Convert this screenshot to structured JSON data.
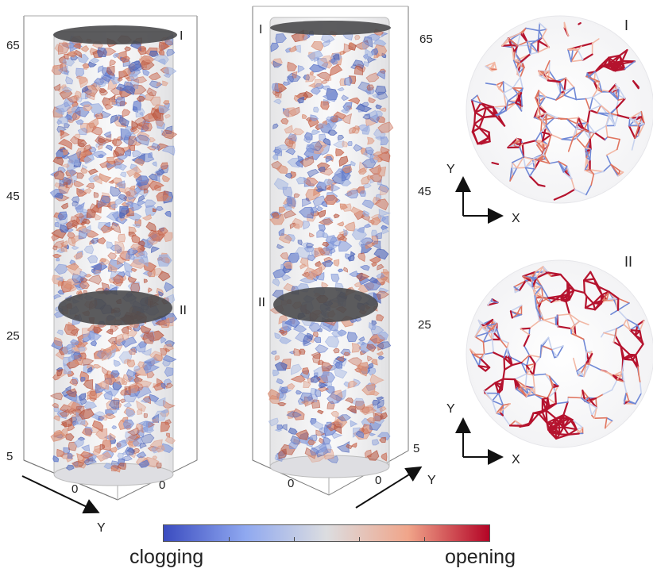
{
  "panels": {
    "left_column": {
      "z_ticks": [
        "65",
        "45",
        "25",
        "5"
      ],
      "base_ticks": [
        "0",
        "0"
      ],
      "axis_label": "Y",
      "slice_labels": [
        "I",
        "II"
      ]
    },
    "middle_column": {
      "z_ticks": [
        "65",
        "45",
        "25",
        "5"
      ],
      "base_ticks": [
        "0",
        "0"
      ],
      "axis_label": "Y",
      "slice_labels": [
        "I",
        "II"
      ]
    },
    "cross_sections": [
      {
        "label": "I",
        "axis_y": "Y",
        "axis_x": "X"
      },
      {
        "label": "II",
        "axis_y": "Y",
        "axis_x": "X"
      }
    ]
  },
  "colorbar": {
    "low_label": "clogging",
    "high_label": "opening",
    "colors": [
      "#3b4cc0",
      "#8fa8f0",
      "#dcdde0",
      "#f0a58a",
      "#b40426"
    ]
  }
}
